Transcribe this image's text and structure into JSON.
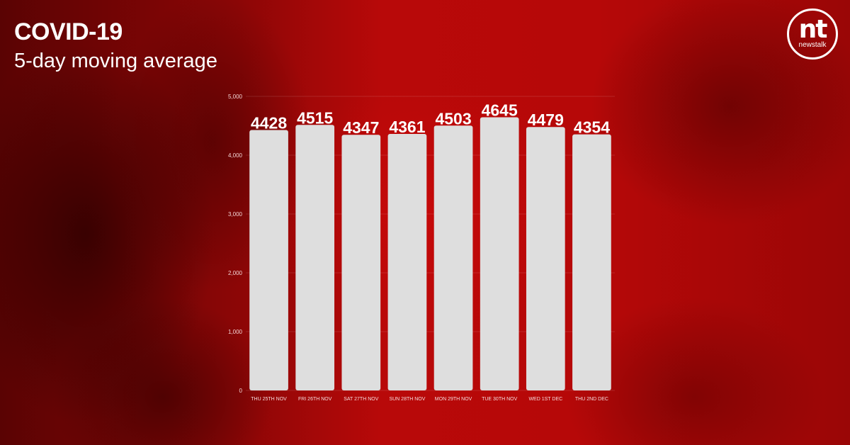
{
  "header": {
    "title": "COVID-19",
    "subtitle": "5-day moving average"
  },
  "logo": {
    "main": "nt",
    "sub": "newstalk",
    "icon": "newstalk-logo-icon"
  },
  "colors": {
    "background": "#b00808",
    "bar": "#dedede",
    "text": "#ffffff"
  },
  "chart_data": {
    "type": "bar",
    "title": "COVID-19",
    "subtitle": "5-day moving average",
    "categories": [
      "THU 25TH NOV",
      "FRI 26TH NOV",
      "SAT 27TH NOV",
      "SUN 28TH NOV",
      "MON 29TH NOV",
      "TUE 30TH NOV",
      "WED 1ST DEC",
      "THU 2ND DEC"
    ],
    "values": [
      4428,
      4515,
      4347,
      4361,
      4503,
      4645,
      4479,
      4354
    ],
    "data_labels": [
      "4428",
      "4515",
      "4347",
      "4361",
      "4503",
      "4645",
      "4479",
      "4354"
    ],
    "y_ticks": [
      0,
      1000,
      2000,
      3000,
      4000,
      5000
    ],
    "y_tick_labels": [
      "0",
      "1,000",
      "2,000",
      "3,000",
      "4,000",
      "5,000"
    ],
    "ylim": [
      0,
      5000
    ],
    "xlabel": "",
    "ylabel": "",
    "grid": true,
    "legend": "none"
  }
}
